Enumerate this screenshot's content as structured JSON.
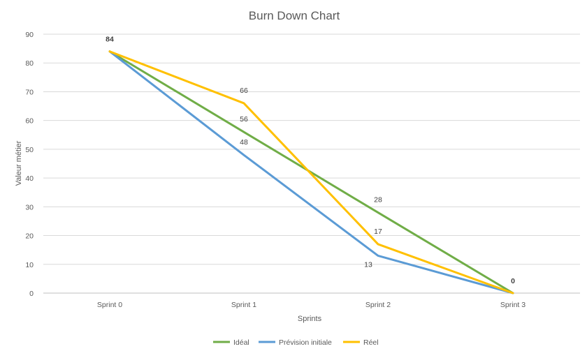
{
  "chart_data": {
    "type": "line",
    "title": "Burn Down Chart",
    "xlabel": "Sprints",
    "ylabel": "Valeur métier",
    "categories": [
      "Sprint 0",
      "Sprint 1",
      "Sprint 2",
      "Sprint 3"
    ],
    "ylim": [
      0,
      90
    ],
    "yticks": [
      "0",
      "10",
      "20",
      "30",
      "40",
      "50",
      "60",
      "70",
      "80",
      "90"
    ],
    "grid": true,
    "legend_position": "bottom",
    "series": [
      {
        "name": "Idéal",
        "color": "#70AD47",
        "values": [
          84,
          56,
          28,
          0
        ]
      },
      {
        "name": "Prévision initiale",
        "color": "#5B9BD5",
        "values": [
          84,
          48,
          13,
          0
        ]
      },
      {
        "name": "Réel",
        "color": "#FFC000",
        "values": [
          84,
          66,
          17,
          0
        ]
      }
    ],
    "data_labels": [
      {
        "text": "84",
        "category": 0,
        "value": 84,
        "bold": true
      },
      {
        "text": "66",
        "category": 1,
        "value": 66,
        "bold": false
      },
      {
        "text": "56",
        "category": 1,
        "value": 56,
        "bold": false
      },
      {
        "text": "48",
        "category": 1,
        "value": 48,
        "bold": false
      },
      {
        "text": "28",
        "category": 2,
        "value": 28,
        "bold": false
      },
      {
        "text": "17",
        "category": 2,
        "value": 17,
        "bold": false
      },
      {
        "text": "13",
        "category": 2,
        "value": 13,
        "bold": false
      },
      {
        "text": "0",
        "category": 3,
        "value": 0,
        "bold": true
      }
    ]
  }
}
